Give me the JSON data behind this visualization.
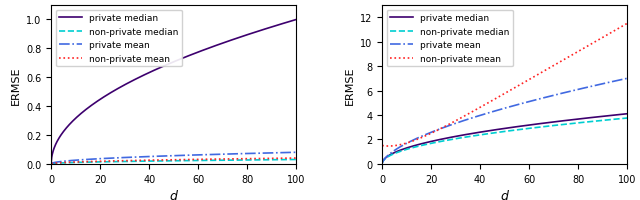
{
  "left_plot": {
    "ylabel": "ERMSE",
    "xlabel": "d",
    "ylim": [
      0,
      1.1
    ],
    "xlim": [
      0,
      100
    ],
    "yticks": [
      0,
      0.2,
      0.4,
      0.6,
      0.8,
      1.0
    ],
    "xticks": [
      0,
      20,
      40,
      60,
      80,
      100
    ]
  },
  "right_plot": {
    "ylabel": "ERMSE",
    "xlabel": "d",
    "ylim": [
      0,
      13
    ],
    "xlim": [
      0,
      100
    ],
    "yticks": [
      0,
      2,
      4,
      6,
      8,
      10,
      12
    ],
    "xticks": [
      0,
      20,
      40,
      60,
      80,
      100
    ]
  },
  "legend": {
    "private_median": "private median",
    "non_private_median": "non-private median",
    "private_mean": "private mean",
    "non_private_mean": "non-private mean"
  },
  "colors": {
    "private_median": "#3d006e",
    "non_private_median": "#00CED1",
    "private_mean": "#4169E1",
    "non_private_mean": "#FF2222"
  },
  "linestyles": {
    "private_median": "-",
    "non_private_median": "--",
    "private_mean": "-.",
    "non_private_mean": ":"
  },
  "left_curves": {
    "private_median_scale": 0.1,
    "non_private_median_scale": 0.003,
    "private_mean_scale": 0.008,
    "non_private_mean_scale": 0.004
  },
  "right_curves": {
    "private_median_end": 4.1,
    "non_private_median_end": 3.75,
    "private_mean_end": 7.0,
    "non_private_mean_start": 1.8,
    "non_private_mean_end": 12.5
  }
}
